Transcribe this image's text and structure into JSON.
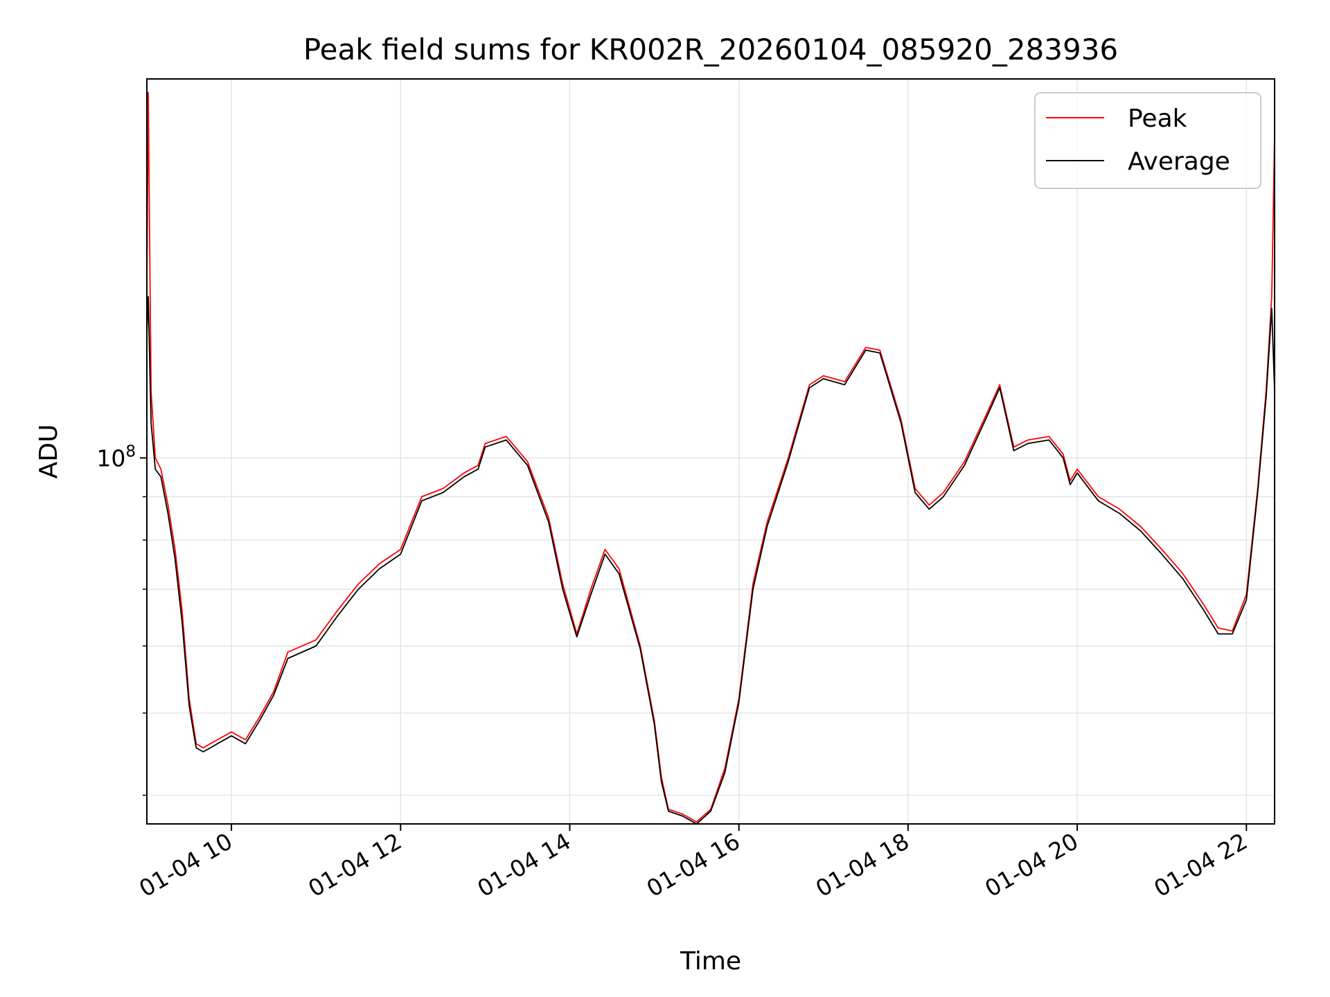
{
  "chart_data": {
    "type": "line",
    "title": "Peak field sums for KR002R_20260104_085920_283936",
    "xlabel": "Time",
    "ylabel": "ADU",
    "y_scale": "log",
    "ylim": [
      37000000,
      280000000
    ],
    "xlim": [
      "01-04 09:00",
      "01-04 22:20"
    ],
    "grid": true,
    "legend_position": "top-right",
    "x_ticks": [
      "01-04 10",
      "01-04 12",
      "01-04 14",
      "01-04 16",
      "01-04 18",
      "01-04 20",
      "01-04 22"
    ],
    "y_major_ticks": [
      {
        "value": 100000000,
        "label_base": "10",
        "label_exp": "8"
      }
    ],
    "y_minor_ticks": [
      40000000,
      50000000,
      60000000,
      70000000,
      80000000,
      90000000
    ],
    "x_time_values": [
      "01-04 09:00",
      "01-04 09:01",
      "01-04 09:03",
      "01-04 09:06",
      "01-04 09:10",
      "01-04 09:15",
      "01-04 09:20",
      "01-04 09:25",
      "01-04 09:30",
      "01-04 09:35",
      "01-04 09:40",
      "01-04 09:45",
      "01-04 09:50",
      "01-04 10:00",
      "01-04 10:10",
      "01-04 10:20",
      "01-04 10:30",
      "01-04 10:40",
      "01-04 11:00",
      "01-04 11:15",
      "01-04 11:30",
      "01-04 11:45",
      "01-04 12:00",
      "01-04 12:15",
      "01-04 12:30",
      "01-04 12:45",
      "01-04 12:55",
      "01-04 13:00",
      "01-04 13:15",
      "01-04 13:30",
      "01-04 13:45",
      "01-04 13:55",
      "01-04 14:05",
      "01-04 14:15",
      "01-04 14:25",
      "01-04 14:35",
      "01-04 14:50",
      "01-04 15:00",
      "01-04 15:05",
      "01-04 15:10",
      "01-04 15:20",
      "01-04 15:30",
      "01-04 15:40",
      "01-04 15:50",
      "01-04 16:00",
      "01-04 16:10",
      "01-04 16:20",
      "01-04 16:35",
      "01-04 16:50",
      "01-04 17:00",
      "01-04 17:15",
      "01-04 17:30",
      "01-04 17:40",
      "01-04 17:55",
      "01-04 18:05",
      "01-04 18:15",
      "01-04 18:25",
      "01-04 18:40",
      "01-04 18:55",
      "01-04 19:05",
      "01-04 19:15",
      "01-04 19:25",
      "01-04 19:40",
      "01-04 19:50",
      "01-04 19:55",
      "01-04 20:00",
      "01-04 20:15",
      "01-04 20:30",
      "01-04 20:45",
      "01-04 21:00",
      "01-04 21:15",
      "01-04 21:30",
      "01-04 21:40",
      "01-04 21:50",
      "01-04 22:00",
      "01-04 22:08",
      "01-04 22:14",
      "01-04 22:18",
      "01-04 22:20"
    ],
    "series": [
      {
        "name": "Peak",
        "color": "#ff0000",
        "values": [
          160000000,
          270000000,
          120000000,
          100000000,
          97000000,
          88000000,
          78000000,
          66000000,
          52000000,
          46000000,
          45500000,
          46000000,
          46500000,
          47500000,
          46500000,
          49500000,
          53000000,
          59000000,
          61000000,
          66000000,
          71000000,
          75000000,
          78000000,
          90000000,
          92000000,
          96000000,
          98000000,
          104000000,
          106000000,
          99000000,
          85000000,
          71000000,
          62000000,
          70000000,
          78000000,
          74000000,
          60000000,
          49000000,
          42000000,
          38500000,
          38000000,
          37200000,
          38500000,
          43000000,
          52000000,
          71000000,
          84000000,
          100000000,
          122000000,
          125000000,
          123000000,
          135000000,
          134000000,
          111000000,
          92000000,
          88000000,
          91000000,
          99000000,
          112000000,
          122000000,
          103000000,
          105000000,
          106000000,
          101000000,
          94000000,
          97000000,
          90000000,
          87000000,
          83000000,
          78000000,
          73000000,
          67000000,
          63000000,
          62500000,
          69000000,
          92000000,
          120000000,
          155000000,
          240000000
        ]
      },
      {
        "name": "Average",
        "color": "#000000",
        "values": [
          140000000,
          155000000,
          110000000,
          97000000,
          95000000,
          86000000,
          76000000,
          64000000,
          51000000,
          45500000,
          45000000,
          45500000,
          46000000,
          47000000,
          46000000,
          49000000,
          52500000,
          58000000,
          60000000,
          65000000,
          70000000,
          74000000,
          77000000,
          89000000,
          91000000,
          95000000,
          97000000,
          103000000,
          105000000,
          98000000,
          84000000,
          70000000,
          61500000,
          69000000,
          77000000,
          73000000,
          59500000,
          48500000,
          41500000,
          38300000,
          37800000,
          37000000,
          38300000,
          42500000,
          51500000,
          70000000,
          83000000,
          99000000,
          121000000,
          124000000,
          122000000,
          134000000,
          133000000,
          110000000,
          91000000,
          87000000,
          90000000,
          98000000,
          111000000,
          121000000,
          102000000,
          104000000,
          105000000,
          100000000,
          93000000,
          96000000,
          89000000,
          86000000,
          82000000,
          77000000,
          72000000,
          66000000,
          62000000,
          62000000,
          68000000,
          91000000,
          118000000,
          150000000,
          120000000
        ]
      }
    ]
  }
}
